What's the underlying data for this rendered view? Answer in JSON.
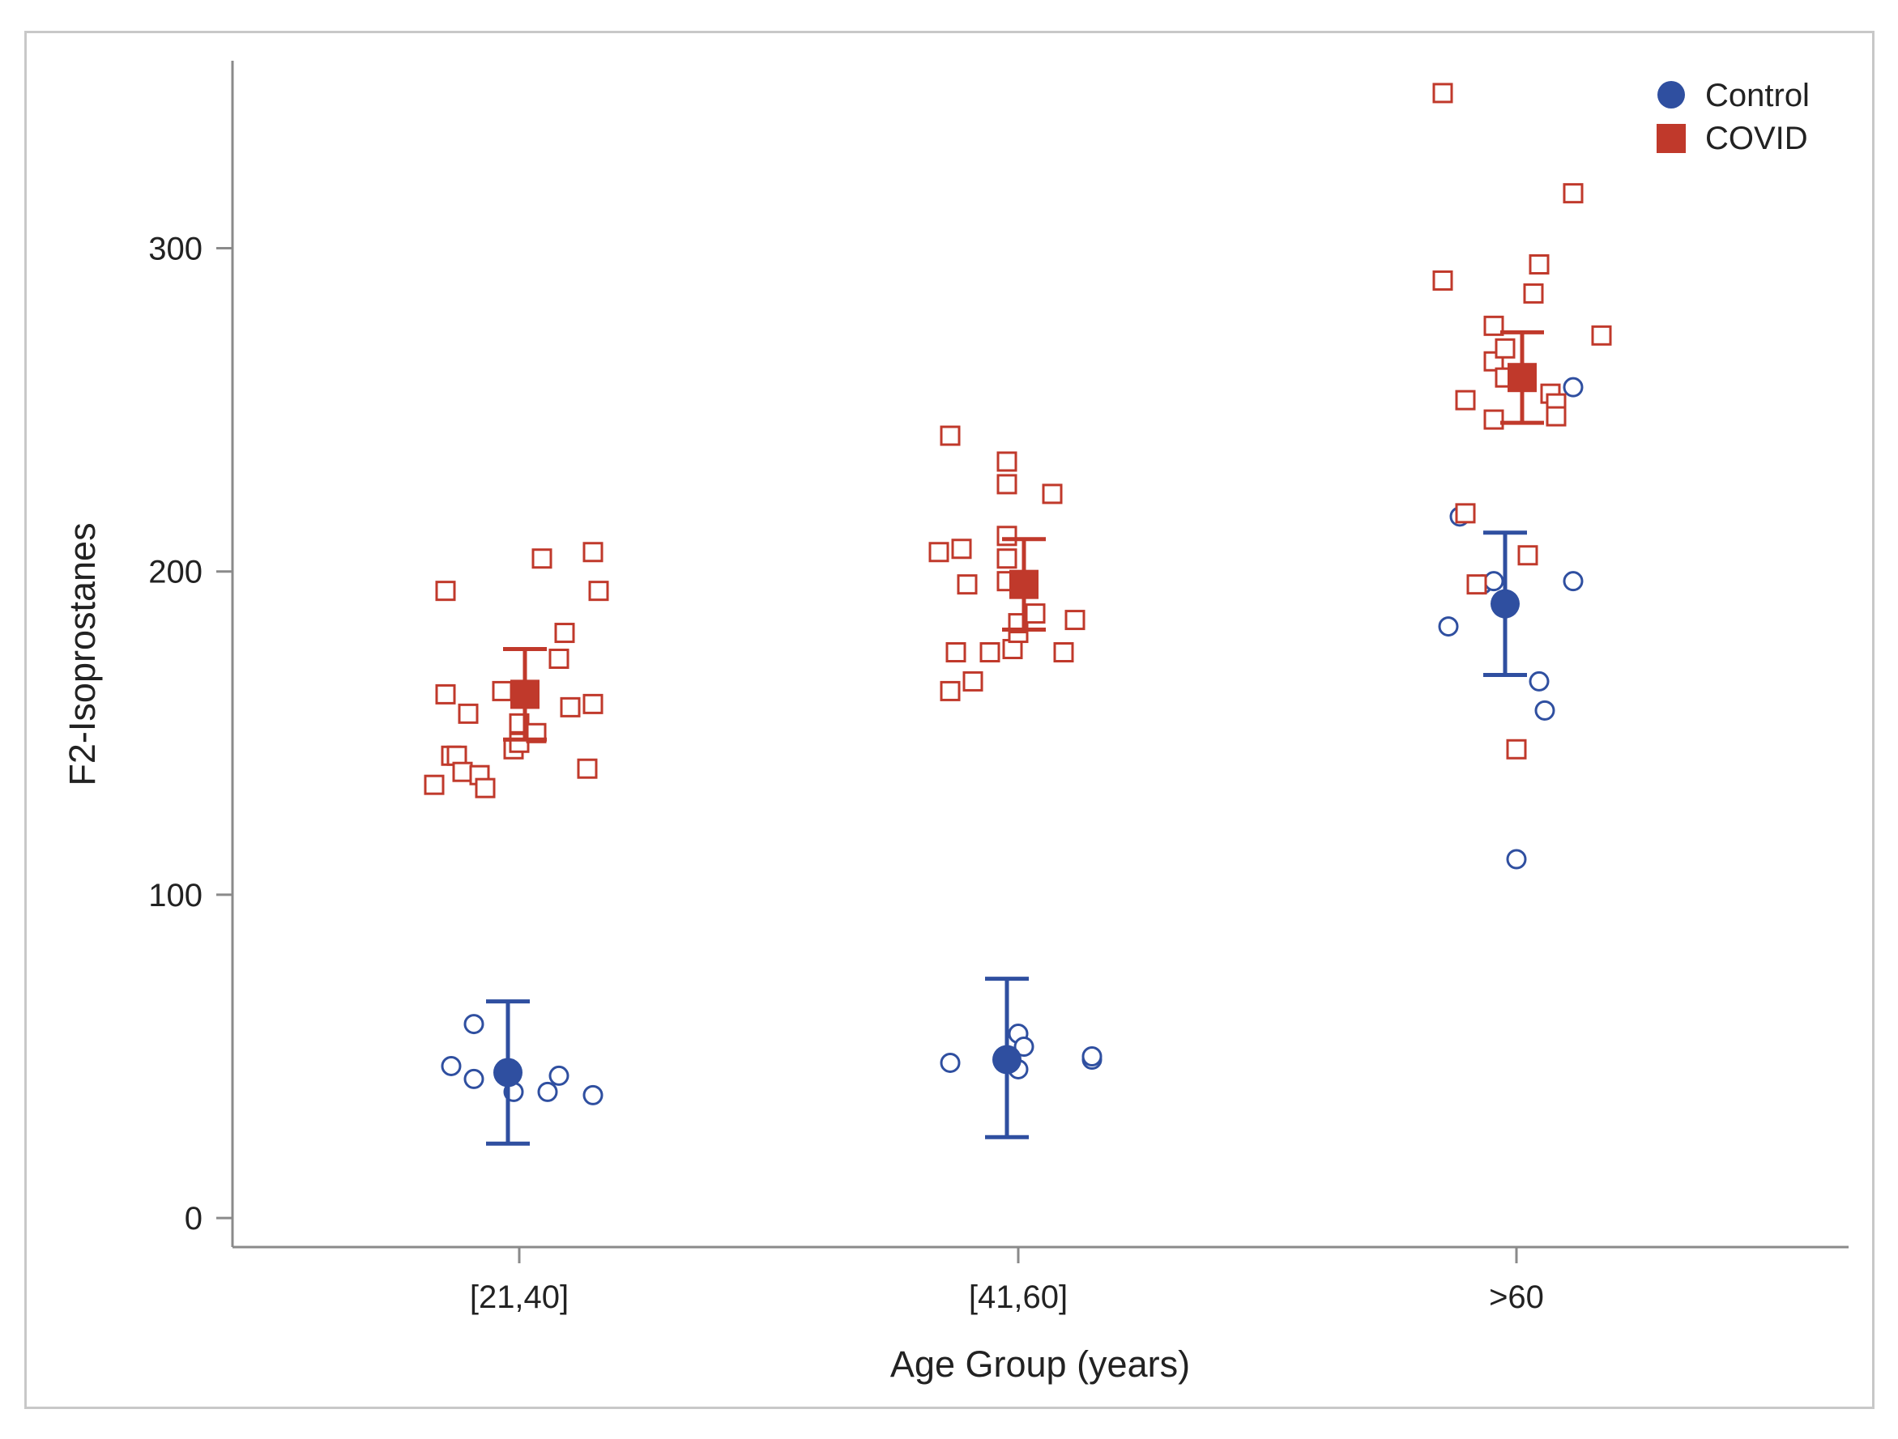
{
  "chart_data": {
    "type": "scatter",
    "title": "",
    "xlabel": "Age Group (years)",
    "ylabel": "F2-Isoprostanes",
    "categories": [
      "[21,40]",
      "[41,60]",
      ">60"
    ],
    "ylim": [
      -9,
      358
    ],
    "yticks": [
      0,
      100,
      200,
      300
    ],
    "grid": false,
    "legend_position": "top-right",
    "colors": {
      "Control": "#2f4fa0",
      "COVID": "#c0392b"
    },
    "series": [
      {
        "name": "Control",
        "marker": "circle",
        "means": [
          45,
          49,
          190
        ],
        "ci_low": [
          23,
          25,
          168
        ],
        "ci_high": [
          67,
          74,
          212
        ],
        "points": [
          [
            {
              "offset": -0.12,
              "y": 47
            },
            {
              "offset": -0.08,
              "y": 60
            },
            {
              "offset": -0.08,
              "y": 43
            },
            {
              "offset": -0.01,
              "y": 39
            },
            {
              "offset": 0.05,
              "y": 39
            },
            {
              "offset": 0.07,
              "y": 44
            },
            {
              "offset": 0.13,
              "y": 38
            }
          ],
          [
            {
              "offset": -0.12,
              "y": 48
            },
            {
              "offset": -0.02,
              "y": 50
            },
            {
              "offset": 0.0,
              "y": 57
            },
            {
              "offset": 0.01,
              "y": 53
            },
            {
              "offset": 0.0,
              "y": 46
            },
            {
              "offset": 0.13,
              "y": 49
            },
            {
              "offset": 0.13,
              "y": 50
            }
          ],
          [
            {
              "offset": -0.12,
              "y": 183
            },
            {
              "offset": -0.1,
              "y": 217
            },
            {
              "offset": -0.06,
              "y": 196
            },
            {
              "offset": -0.04,
              "y": 197
            },
            {
              "offset": 0.04,
              "y": 166
            },
            {
              "offset": 0.05,
              "y": 157
            },
            {
              "offset": 0.0,
              "y": 111
            },
            {
              "offset": 0.1,
              "y": 197
            },
            {
              "offset": 0.1,
              "y": 257
            }
          ]
        ]
      },
      {
        "name": "COVID",
        "marker": "square",
        "means": [
          162,
          196,
          260
        ],
        "ci_low": [
          148,
          182,
          246
        ],
        "ci_high": [
          176,
          210,
          274
        ],
        "points": [
          [
            {
              "offset": -0.15,
              "y": 134
            },
            {
              "offset": -0.13,
              "y": 194
            },
            {
              "offset": -0.13,
              "y": 162
            },
            {
              "offset": -0.12,
              "y": 143
            },
            {
              "offset": -0.11,
              "y": 143
            },
            {
              "offset": -0.1,
              "y": 138
            },
            {
              "offset": -0.09,
              "y": 156
            },
            {
              "offset": -0.07,
              "y": 137
            },
            {
              "offset": -0.06,
              "y": 133
            },
            {
              "offset": -0.03,
              "y": 163
            },
            {
              "offset": -0.01,
              "y": 145
            },
            {
              "offset": 0.0,
              "y": 153
            },
            {
              "offset": 0.0,
              "y": 147
            },
            {
              "offset": 0.03,
              "y": 150
            },
            {
              "offset": 0.04,
              "y": 204
            },
            {
              "offset": 0.07,
              "y": 173
            },
            {
              "offset": 0.08,
              "y": 181
            },
            {
              "offset": 0.09,
              "y": 158
            },
            {
              "offset": 0.12,
              "y": 139
            },
            {
              "offset": 0.13,
              "y": 159
            },
            {
              "offset": 0.13,
              "y": 206
            },
            {
              "offset": 0.14,
              "y": 194
            }
          ],
          [
            {
              "offset": -0.14,
              "y": 206
            },
            {
              "offset": -0.12,
              "y": 242
            },
            {
              "offset": -0.12,
              "y": 163
            },
            {
              "offset": -0.11,
              "y": 175
            },
            {
              "offset": -0.1,
              "y": 207
            },
            {
              "offset": -0.09,
              "y": 196
            },
            {
              "offset": -0.08,
              "y": 166
            },
            {
              "offset": -0.05,
              "y": 175
            },
            {
              "offset": -0.02,
              "y": 234
            },
            {
              "offset": -0.02,
              "y": 227
            },
            {
              "offset": -0.02,
              "y": 211
            },
            {
              "offset": -0.02,
              "y": 204
            },
            {
              "offset": -0.02,
              "y": 197
            },
            {
              "offset": -0.01,
              "y": 176
            },
            {
              "offset": 0.0,
              "y": 181
            },
            {
              "offset": 0.0,
              "y": 184
            },
            {
              "offset": 0.03,
              "y": 187
            },
            {
              "offset": 0.06,
              "y": 224
            },
            {
              "offset": 0.08,
              "y": 175
            },
            {
              "offset": 0.1,
              "y": 185
            }
          ],
          [
            {
              "offset": -0.13,
              "y": 348
            },
            {
              "offset": -0.13,
              "y": 290
            },
            {
              "offset": -0.09,
              "y": 218
            },
            {
              "offset": -0.09,
              "y": 253
            },
            {
              "offset": -0.07,
              "y": 196
            },
            {
              "offset": -0.04,
              "y": 247
            },
            {
              "offset": -0.04,
              "y": 265
            },
            {
              "offset": -0.04,
              "y": 276
            },
            {
              "offset": -0.02,
              "y": 269
            },
            {
              "offset": -0.02,
              "y": 260
            },
            {
              "offset": 0.0,
              "y": 145
            },
            {
              "offset": 0.02,
              "y": 205
            },
            {
              "offset": 0.03,
              "y": 286
            },
            {
              "offset": 0.04,
              "y": 295
            },
            {
              "offset": 0.06,
              "y": 255
            },
            {
              "offset": 0.07,
              "y": 252
            },
            {
              "offset": 0.07,
              "y": 248
            },
            {
              "offset": 0.1,
              "y": 317
            },
            {
              "offset": 0.15,
              "y": 273
            }
          ]
        ]
      }
    ]
  }
}
